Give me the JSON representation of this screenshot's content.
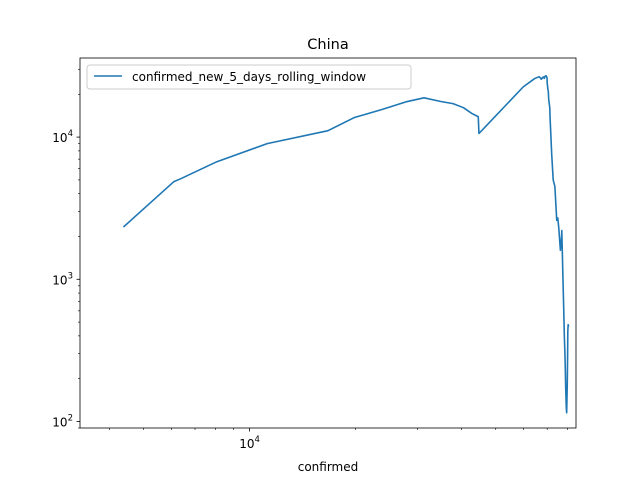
{
  "chart_data": {
    "type": "line",
    "title": "China",
    "xlabel": "confirmed",
    "ylabel": "",
    "x_scale": "log",
    "y_scale": "log",
    "xlim": [
      3300,
      84500
    ],
    "ylim": [
      90,
      36000
    ],
    "x_ticks": [
      {
        "value": 10000,
        "base": "10",
        "exp": "4"
      }
    ],
    "y_ticks": [
      {
        "value": 100,
        "base": "10",
        "exp": "2"
      },
      {
        "value": 1000,
        "base": "10",
        "exp": "3"
      },
      {
        "value": 10000,
        "base": "10",
        "exp": "4"
      }
    ],
    "legend_position": "top-left",
    "grid": false,
    "series": [
      {
        "name": "confirmed_new_5_days_rolling_window",
        "color": "#1f77b4",
        "x": [
          4400,
          6088,
          6380,
          8059,
          11221,
          16700,
          19800,
          23700,
          27800,
          31300,
          34900,
          37800,
          40500,
          42700,
          44600,
          44800,
          59900,
          64500,
          66400,
          66800,
          67100,
          67300,
          68200,
          68500,
          68700,
          69000,
          69500,
          69900,
          70000,
          70300,
          70500,
          70700,
          71200,
          71300,
          72100,
          72800,
          73100,
          73600,
          74500,
          75000,
          75500,
          76300,
          76900,
          77000,
          77300,
          77600,
          78000,
          78300,
          78600,
          78800,
          79000,
          79300,
          79500,
          79800,
          80000,
          80100,
          80200,
          80300,
          80400
        ],
        "y": [
          2350,
          4850,
          5100,
          6700,
          9000,
          11100,
          13700,
          15600,
          17700,
          18900,
          17800,
          17200,
          16100,
          14700,
          13900,
          10600,
          22600,
          25800,
          26600,
          26200,
          26000,
          25500,
          26500,
          26100,
          25900,
          26800,
          27000,
          26200,
          24000,
          21800,
          21000,
          18400,
          16000,
          14000,
          7500,
          5000,
          4800,
          4500,
          2600,
          2700,
          2300,
          1600,
          2000,
          2200,
          1500,
          1000,
          600,
          400,
          300,
          230,
          170,
          125,
          115,
          180,
          300,
          430,
          460,
          480,
          470
        ]
      }
    ]
  }
}
